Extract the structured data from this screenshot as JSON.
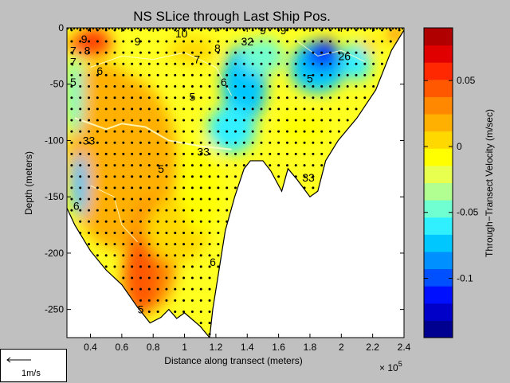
{
  "chart_data": {
    "type": "heatmap",
    "title": "NS SLice through Last Ship Pos.",
    "xlabel": "Distance along transect (meters)",
    "ylabel": "Depth (meters)",
    "x_multiplier_label": "× 10",
    "x_multiplier_exponent": "5",
    "x_ticks": [
      "0.4",
      "0.6",
      "0.8",
      "1",
      "1.2",
      "1.4",
      "1.6",
      "1.8",
      "2",
      "2.2",
      "2.4"
    ],
    "x_tick_values": [
      40000,
      60000,
      80000,
      100000,
      120000,
      140000,
      160000,
      180000,
      200000,
      220000,
      240000
    ],
    "y_ticks": [
      "0",
      "-50",
      "-100",
      "-150",
      "-200",
      "-250"
    ],
    "y_tick_values": [
      0,
      -50,
      -100,
      -150,
      -200,
      -250
    ],
    "xlim": [
      25000,
      240000
    ],
    "ylim": [
      -275,
      0
    ],
    "colorbar": {
      "label": "Through−Transect Velocity (m/sec)",
      "ticks": [
        "0.05",
        "0",
        "-0.05",
        "-0.1"
      ],
      "tick_values": [
        0.05,
        0,
        -0.05,
        -0.1
      ],
      "range": [
        -0.145,
        0.09
      ],
      "colors": [
        "#000090",
        "#0000c8",
        "#0010ff",
        "#0050ff",
        "#0090ff",
        "#00c8ff",
        "#30f0ff",
        "#70ffd0",
        "#b0ff90",
        "#e8ff50",
        "#ffff00",
        "#ffd800",
        "#ffb000",
        "#ff8800",
        "#ff5800",
        "#ff2800",
        "#e00000",
        "#b00000"
      ]
    },
    "bottom_profile": [
      [
        25000,
        -160
      ],
      [
        30000,
        -175
      ],
      [
        40000,
        -198
      ],
      [
        50000,
        -215
      ],
      [
        60000,
        -228
      ],
      [
        70000,
        -248
      ],
      [
        78000,
        -262
      ],
      [
        85000,
        -257
      ],
      [
        90000,
        -250
      ],
      [
        95000,
        -258
      ],
      [
        100000,
        -253
      ],
      [
        110000,
        -265
      ],
      [
        116000,
        -275
      ],
      [
        118000,
        -250
      ],
      [
        122000,
        -215
      ],
      [
        126000,
        -180
      ],
      [
        132000,
        -150
      ],
      [
        138000,
        -125
      ],
      [
        142000,
        -118
      ],
      [
        150000,
        -118
      ],
      [
        155000,
        -127
      ],
      [
        162000,
        -145
      ],
      [
        166000,
        -125
      ],
      [
        172000,
        -135
      ],
      [
        180000,
        -150
      ],
      [
        185000,
        -145
      ],
      [
        190000,
        -118
      ],
      [
        198000,
        -100
      ],
      [
        210000,
        -80
      ],
      [
        222000,
        -55
      ],
      [
        232000,
        -20
      ],
      [
        240000,
        -2
      ]
    ],
    "contour_labels": [
      {
        "text": "9",
        "x": 36000,
        "y": -10
      },
      {
        "text": "8",
        "x": 38000,
        "y": -20
      },
      {
        "text": "7",
        "x": 29000,
        "y": -20
      },
      {
        "text": "7",
        "x": 29000,
        "y": -30
      },
      {
        "text": "6",
        "x": 46000,
        "y": -38
      },
      {
        "text": "5",
        "x": 29000,
        "y": -48
      },
      {
        "text": "9",
        "x": 70000,
        "y": -12
      },
      {
        "text": "10",
        "x": 98000,
        "y": -5
      },
      {
        "text": "7",
        "x": 108000,
        "y": -28
      },
      {
        "text": "8",
        "x": 121000,
        "y": -18
      },
      {
        "text": "6",
        "x": 125000,
        "y": -48
      },
      {
        "text": "5",
        "x": 105000,
        "y": -61
      },
      {
        "text": "32",
        "x": 140000,
        "y": -12
      },
      {
        "text": "9",
        "x": 150000,
        "y": -2
      },
      {
        "text": "9",
        "x": 163000,
        "y": -2
      },
      {
        "text": "5",
        "x": 180000,
        "y": -45
      },
      {
        "text": "26",
        "x": 202000,
        "y": -25
      },
      {
        "text": "33",
        "x": 39000,
        "y": -100
      },
      {
        "text": "33",
        "x": 112000,
        "y": -110
      },
      {
        "text": "5",
        "x": 85000,
        "y": -125
      },
      {
        "text": "33",
        "x": 179000,
        "y": -133
      },
      {
        "text": "6",
        "x": 31000,
        "y": -158
      },
      {
        "text": "6",
        "x": 118000,
        "y": -208
      },
      {
        "text": "5",
        "x": 72000,
        "y": -250
      }
    ]
  },
  "legend": {
    "arrow_label": "1m/s"
  },
  "colors": {
    "page_background": "#c0c0c0",
    "land": "#ffffff",
    "contour_line": "#ffffcc"
  }
}
